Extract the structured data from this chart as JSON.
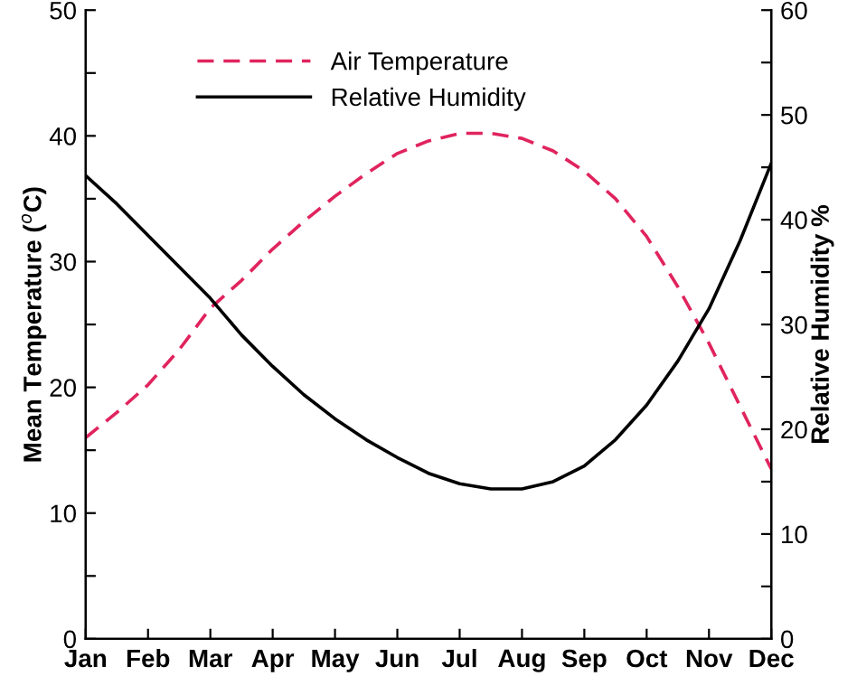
{
  "chart_data": {
    "type": "line",
    "categories": [
      "Jan",
      null,
      "Feb",
      null,
      "Mar",
      null,
      "Apr",
      null,
      "May",
      null,
      "Jun",
      null,
      "Jul",
      null,
      "Aug",
      null,
      "Sep",
      null,
      "Oct",
      null,
      "Nov",
      null,
      "Dec"
    ],
    "series": [
      {
        "name": "Air Temperature",
        "color": "#e0245e",
        "line_style": "dashed",
        "values": [
          16,
          18,
          20.2,
          23,
          26.3,
          28.5,
          31,
          33.2,
          35.2,
          37,
          38.6,
          39.6,
          40.2,
          40.2,
          39.8,
          38.8,
          37.2,
          35,
          32,
          28,
          23.5,
          18.5,
          13.5
        ]
      },
      {
        "name": "Relative Humidity",
        "color": "#000000",
        "line_style": "solid",
        "axis": "y2",
        "values": [
          44.2,
          41.5,
          38.5,
          35.5,
          32.5,
          29,
          26,
          23.3,
          21,
          19,
          17.3,
          15.8,
          14.8,
          14.3,
          14.3,
          15,
          16.5,
          19,
          22.3,
          26.5,
          31.5,
          38,
          45.4
        ]
      }
    ],
    "ylabel": "Mean Temperature ($^{o}$C)",
    "y2label": "Relative Humidity %",
    "ylim": [
      0,
      50
    ],
    "yticks": [
      0,
      {
        "value": 5,
        "label": null
      },
      10,
      {
        "value": 15,
        "label": null
      },
      20,
      {
        "value": 25,
        "label": null
      },
      30,
      {
        "value": 35,
        "label": null
      },
      40,
      {
        "value": 45,
        "label": null
      },
      50
    ],
    "y2lim": [
      0,
      60
    ],
    "y2ticks": [
      0,
      {
        "value": 5,
        "label": null
      },
      10,
      {
        "value": 15,
        "label": null
      },
      20,
      {
        "value": 25,
        "label": null
      },
      30,
      {
        "value": 35,
        "label": null
      },
      40,
      {
        "value": 45,
        "label": null
      },
      50,
      {
        "value": 55,
        "label": null
      },
      60
    ],
    "legend": "top left",
    "grid": false,
    "marker": "none"
  }
}
